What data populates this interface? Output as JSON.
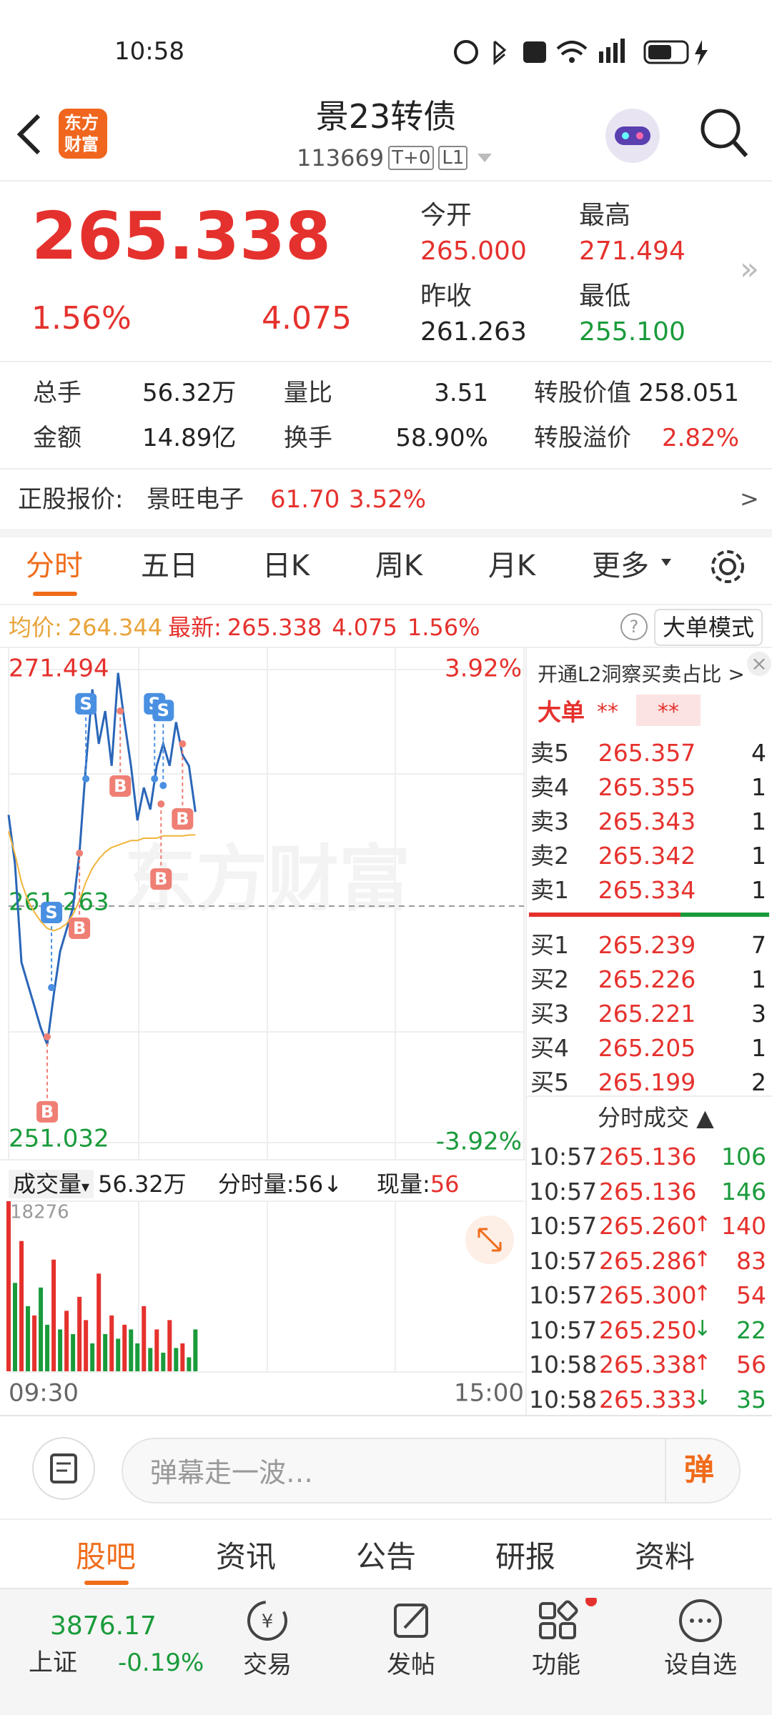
{
  "status": {
    "time": "10:58"
  },
  "header": {
    "logo_top": "东方",
    "logo_bottom": "财富",
    "title": "景23转债",
    "code": "113669",
    "tags": [
      "T+0",
      "L1"
    ]
  },
  "quote": {
    "price": "265.338",
    "change_pct": "1.56%",
    "change": "4.075",
    "fields": [
      {
        "label": "今开",
        "value": "265.000",
        "color": "#e5312d"
      },
      {
        "label": "最高",
        "value": "271.494",
        "color": "#e5312d"
      },
      {
        "label": "昨收",
        "value": "261.263",
        "color": "#222222"
      },
      {
        "label": "最低",
        "value": "255.100",
        "color": "#1a9b3b"
      }
    ]
  },
  "stats": [
    [
      {
        "label": "总手",
        "value": "56.32万"
      },
      {
        "label": "量比",
        "value": "3.51"
      },
      {
        "label": "转股价值",
        "value": "258.051"
      }
    ],
    [
      {
        "label": "金额",
        "value": "14.89亿"
      },
      {
        "label": "换手",
        "value": "58.90%"
      },
      {
        "label": "转股溢价",
        "value": "2.82%",
        "color": "#e5312d"
      }
    ]
  ],
  "stock": {
    "label": "正股报价:",
    "name": "景旺电子",
    "price": "61.70",
    "pct": "3.52%",
    "more": ">"
  },
  "tabs": [
    "分时",
    "五日",
    "日K",
    "周K",
    "月K",
    "更多"
  ],
  "info": {
    "avg_label": "均价:",
    "avg": "264.344",
    "last_label": "最新:",
    "last": "265.338",
    "change": "4.075",
    "pct": "1.56%",
    "help": "?",
    "mode": "大单模式"
  },
  "chart_data": [
    {
      "type": "line",
      "watermark": "东方财富",
      "xlim": [
        0,
        240
      ],
      "ylim": [
        251.032,
        271.494
      ],
      "yticks": [
        251.032,
        261.263,
        271.494
      ],
      "y2lim": [
        -3.92,
        3.92
      ],
      "y2ticks": [
        {
          "value": -3.92,
          "label": "-3.92%"
        },
        {
          "value": 3.92,
          "label": "3.92%"
        }
      ],
      "x": [
        0,
        3,
        6,
        9,
        12,
        15,
        18,
        21,
        24,
        27,
        30,
        33,
        36,
        39,
        42,
        45,
        48,
        51,
        54,
        57,
        60,
        63,
        66,
        69,
        72,
        75,
        78,
        81,
        84,
        87
      ],
      "series": [
        {
          "color": "#2a66b8",
          "values": [
            265.21,
            263.08,
            258.83,
            257.88,
            256.94,
            255.99,
            255.28,
            257.41,
            259.3,
            260.25,
            261.19,
            263.55,
            267.33,
            270.64,
            268.28,
            269.7,
            267.33,
            271.35,
            269.22,
            267.33,
            264.97,
            266.39,
            265.44,
            267.33,
            268.28,
            267.33,
            269.22,
            267.8,
            267.33,
            265.338
          ]
        },
        {
          "color": "#f0b43c",
          "values": [
            264.5,
            263.5,
            262.3,
            261.5,
            261.0,
            260.6,
            260.3,
            260.2,
            260.3,
            260.5,
            260.9,
            261.5,
            262.3,
            262.9,
            263.3,
            263.6,
            263.8,
            263.9,
            264.0,
            264.1,
            264.1,
            264.2,
            264.2,
            264.2,
            264.3,
            264.3,
            264.3,
            264.3,
            264.34,
            264.344
          ]
        }
      ],
      "signals": [
        {
          "label": "B",
          "x": 18,
          "value": 255.61
        },
        {
          "label": "S",
          "x": 20,
          "value": 257.74
        },
        {
          "label": "B",
          "x": 33,
          "value": 263.55
        },
        {
          "label": "S",
          "x": 36,
          "value": 266.77
        },
        {
          "label": "B",
          "x": 52,
          "value": 269.7
        },
        {
          "label": "S",
          "x": 68,
          "value": 266.77
        },
        {
          "label": "S",
          "x": 72,
          "value": 266.48
        },
        {
          "label": "B",
          "x": 71,
          "value": 265.68
        },
        {
          "label": "B",
          "x": 81,
          "value": 268.28
        }
      ]
    },
    {
      "type": "bar",
      "title": "成交量",
      "title_arrow": "▾",
      "total": "56.32万",
      "minute_label": "分时量:",
      "minute_vol": "56",
      "minute_arrow": "↓",
      "now_label": "现量:",
      "now_vol": "56",
      "xlim": [
        0,
        240
      ],
      "xticks": [
        {
          "value": 0,
          "label": "09:30"
        },
        {
          "value": 240,
          "label": "15:00"
        }
      ],
      "ylim": [
        0,
        18276
      ],
      "yticks": [
        18276
      ],
      "x": [
        0,
        3,
        6,
        9,
        12,
        15,
        18,
        21,
        24,
        27,
        30,
        33,
        36,
        39,
        42,
        45,
        48,
        51,
        54,
        57,
        60,
        63,
        66,
        69,
        72,
        75,
        78,
        81,
        84,
        87
      ],
      "values": [
        18276,
        9500,
        14000,
        7000,
        6000,
        9000,
        5000,
        12000,
        4500,
        6500,
        4000,
        8000,
        5500,
        3000,
        10500,
        4000,
        6000,
        3500,
        5000,
        4500,
        3000,
        7000,
        2500,
        4500,
        2000,
        5500,
        2500,
        3000,
        1500,
        4500
      ],
      "colors": [
        "#e5312d",
        "#1a9b3b",
        "#e5312d",
        "#1a9b3b",
        "#e5312d",
        "#1a9b3b",
        "#1a9b3b",
        "#e5312d",
        "#1a9b3b",
        "#e5312d",
        "#1a9b3b",
        "#e5312d",
        "#e5312d",
        "#1a9b3b",
        "#e5312d",
        "#1a9b3b",
        "#e5312d",
        "#1a9b3b",
        "#e5312d",
        "#1a9b3b",
        "#1a9b3b",
        "#e5312d",
        "#1a9b3b",
        "#e5312d",
        "#1a9b3b",
        "#e5312d",
        "#1a9b3b",
        "#e5312d",
        "#1a9b3b",
        "#1a9b3b"
      ]
    }
  ],
  "panel": {
    "promo": "开通L2洞察买卖占比 >",
    "big_label": "大单",
    "big_a": "**",
    "big_b": "**",
    "sells": [
      {
        "label": "卖5",
        "price": "265.357",
        "vol": "4"
      },
      {
        "label": "卖4",
        "price": "265.355",
        "vol": "1"
      },
      {
        "label": "卖3",
        "price": "265.343",
        "vol": "1"
      },
      {
        "label": "卖2",
        "price": "265.342",
        "vol": "1"
      },
      {
        "label": "卖1",
        "price": "265.334",
        "vol": "1"
      }
    ],
    "buys": [
      {
        "label": "买1",
        "price": "265.239",
        "vol": "7"
      },
      {
        "label": "买2",
        "price": "265.226",
        "vol": "1"
      },
      {
        "label": "买3",
        "price": "265.221",
        "vol": "3"
      },
      {
        "label": "买4",
        "price": "265.205",
        "vol": "1"
      },
      {
        "label": "买5",
        "price": "265.199",
        "vol": "2"
      }
    ],
    "trades_title": "分时成交 ▲",
    "trades": [
      {
        "time": "10:57",
        "price": "265.136",
        "vol": "106",
        "color": "#1a9b3b"
      },
      {
        "time": "10:57",
        "price": "265.136",
        "vol": "146",
        "color": "#1a9b3b"
      },
      {
        "time": "10:57",
        "price": "265.260",
        "dir": "↑",
        "vol": "140",
        "color": "#e5312d"
      },
      {
        "time": "10:57",
        "price": "265.286",
        "dir": "↑",
        "vol": "83",
        "color": "#e5312d"
      },
      {
        "time": "10:57",
        "price": "265.300",
        "dir": "↑",
        "vol": "54",
        "color": "#e5312d"
      },
      {
        "time": "10:57",
        "price": "265.250",
        "dir": "↓",
        "vol": "22",
        "color": "#1a9b3b"
      },
      {
        "time": "10:58",
        "price": "265.338",
        "dir": "↑",
        "vol": "56",
        "color": "#e5312d"
      },
      {
        "time": "10:58",
        "price": "265.333",
        "dir": "↓",
        "vol": "35",
        "color": "#1a9b3b"
      }
    ]
  },
  "comment": {
    "placeholder": "弹幕走一波…",
    "button": "弹"
  },
  "bottom_tabs": [
    "股吧",
    "资讯",
    "公告",
    "研报",
    "资料"
  ],
  "nav": {
    "index_value": "3876.17",
    "index_name": "上证",
    "index_pct": "-0.19%",
    "items": [
      "交易",
      "发帖",
      "功能",
      "设自选"
    ]
  }
}
